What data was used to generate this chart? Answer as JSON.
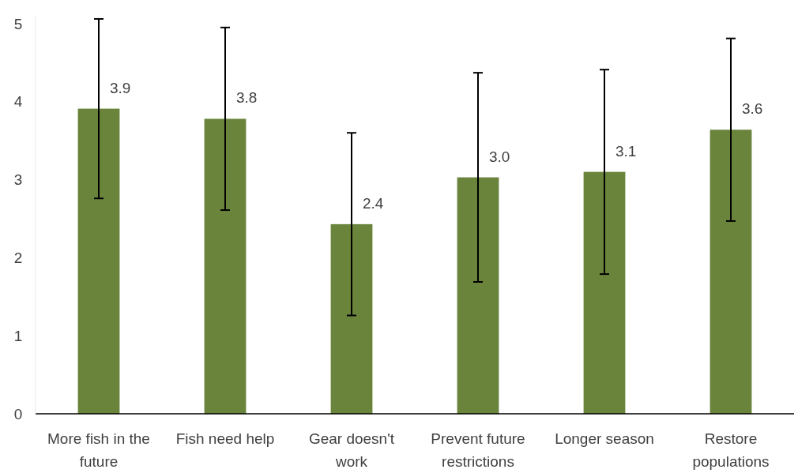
{
  "chart_data": {
    "type": "bar",
    "categories": [
      "More fish in the future",
      "Fish need help",
      "Gear doesn't work",
      "Prevent future restrictions",
      "Longer season",
      "Restore populations"
    ],
    "values": [
      3.91,
      3.78,
      2.43,
      3.03,
      3.1,
      3.64
    ],
    "value_labels": [
      "3.9",
      "3.8",
      "2.4",
      "3.0",
      "3.1",
      "3.6"
    ],
    "errors": [
      1.15,
      1.17,
      1.17,
      1.34,
      1.31,
      1.17
    ],
    "color": "#6a843c",
    "ylim": [
      0,
      5.1
    ],
    "yticks": [
      0,
      1,
      2,
      3,
      4,
      5
    ],
    "grid": false
  }
}
